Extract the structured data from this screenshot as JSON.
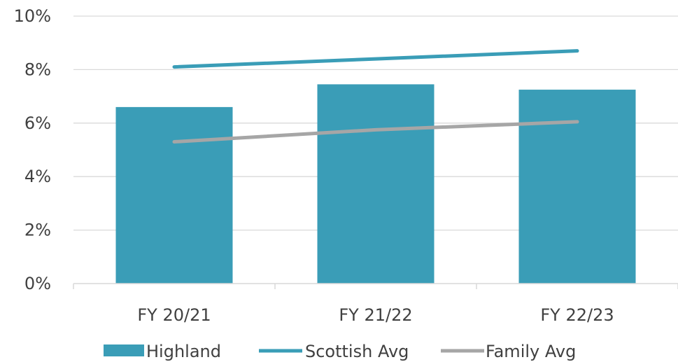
{
  "chart_data": {
    "type": "bar",
    "categories": [
      "FY 20/21",
      "FY 21/22",
      "FY 22/23"
    ],
    "series": [
      {
        "name": "Highland",
        "type": "bar",
        "color": "#3A9DB7",
        "values": [
          6.6,
          7.45,
          7.25
        ]
      },
      {
        "name": "Scottish Avg",
        "type": "line",
        "color": "#3A9DB7",
        "values": [
          8.1,
          8.4,
          8.7
        ]
      },
      {
        "name": "Family Avg",
        "type": "line",
        "color": "#A6A6A6",
        "values": [
          5.3,
          5.75,
          6.05
        ]
      }
    ],
    "ylim": [
      0,
      10
    ],
    "yticks": [
      "0%",
      "2%",
      "4%",
      "6%",
      "8%",
      "10%"
    ],
    "grid": true,
    "legend_position": "bottom"
  }
}
